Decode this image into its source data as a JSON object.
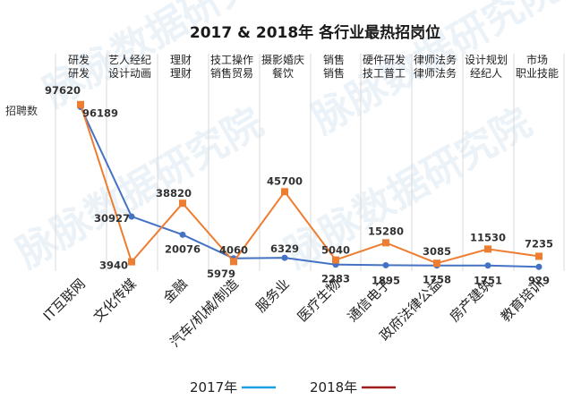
{
  "chart_data": {
    "type": "line",
    "title": "2017 & 2018年 各行业最热招岗位",
    "ylabel": "招聘数",
    "ylim": [
      0,
      105000
    ],
    "grid": "vertical-lines",
    "legend_position": "bottom-left",
    "categories": [
      "IT互联网",
      "文化传媒",
      "金融",
      "汽车/机械/制造",
      "服务业",
      "医疗生物",
      "通信电子",
      "政府法律公益",
      "房产建筑",
      "教育培训"
    ],
    "top_labels": [
      [
        "研发",
        "研发"
      ],
      [
        "艺人经纪",
        "设计动画"
      ],
      [
        "理财",
        "理财"
      ],
      [
        "技工操作",
        "销售贸易"
      ],
      [
        "摄影婚庆",
        "餐饮"
      ],
      [
        "销售",
        "销售"
      ],
      [
        "硬件研发",
        "技工普工"
      ],
      [
        "律师法务",
        "律师法务"
      ],
      [
        "设计规划",
        "经纪人"
      ],
      [
        "市场",
        "职业技能"
      ]
    ],
    "series": [
      {
        "name": "2017年",
        "color": "#4472c4",
        "values": [
          96189,
          30927,
          20076,
          5979,
          6329,
          2283,
          1895,
          1758,
          1751,
          929
        ]
      },
      {
        "name": "2018年",
        "color": "#ed7d31",
        "values": [
          97620,
          3940,
          38820,
          4060,
          45700,
          5040,
          15280,
          3085,
          11530,
          7235
        ]
      }
    ],
    "legend": [
      {
        "name": "2017年",
        "color": "#1ba1e2"
      },
      {
        "name": "2018年",
        "color": "#a11c1c"
      }
    ]
  },
  "watermark": "脉脉数据研究院"
}
